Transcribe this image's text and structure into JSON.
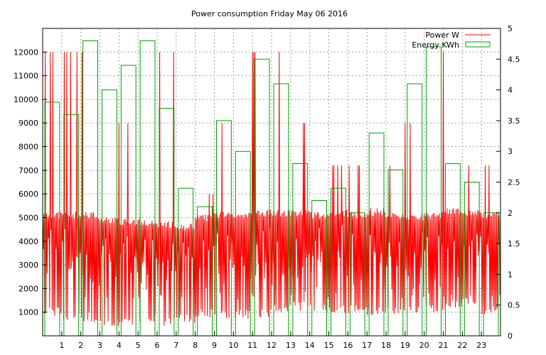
{
  "chart_data": {
    "type": "line",
    "title": "Power consumption Friday May 06 2016",
    "x": [
      0,
      1,
      2,
      3,
      4,
      5,
      6,
      7,
      8,
      9,
      10,
      11,
      12,
      13,
      14,
      15,
      16,
      17,
      18,
      19,
      20,
      21,
      22,
      23
    ],
    "x_tick_labels": [
      "1",
      "2",
      "3",
      "4",
      "5",
      "6",
      "7",
      "8",
      "9",
      "10",
      "11",
      "12",
      "13",
      "14",
      "15",
      "16",
      "17",
      "18",
      "19",
      "20",
      "21",
      "22",
      "23"
    ],
    "xlim": [
      0,
      24
    ],
    "ylim": [
      0,
      13000
    ],
    "y_ticks": [
      1000,
      2000,
      3000,
      4000,
      5000,
      6000,
      7000,
      8000,
      9000,
      10000,
      11000,
      12000
    ],
    "y2lim": [
      0,
      5
    ],
    "y2_ticks": [
      "0",
      "0.5",
      "1",
      "1.5",
      "2",
      "2.5",
      "3",
      "3.5",
      "4",
      "4.5",
      "5"
    ],
    "grid": true,
    "legend_position": "top-right",
    "series": [
      {
        "name": "Power W",
        "color": "#ff0000",
        "style": "line",
        "axis": "left",
        "hourly_low": [
          850,
          600,
          580,
          420,
          430,
          500,
          380,
          520,
          750,
          700,
          720,
          760,
          1000,
          1050,
          1000,
          950,
          900,
          850,
          850,
          950,
          1000,
          1100,
          1300,
          900
        ],
        "hourly_typical": [
          5100,
          5100,
          5100,
          4900,
          4800,
          4800,
          4700,
          4600,
          5000,
          5100,
          5100,
          5200,
          5200,
          5200,
          5100,
          5200,
          5100,
          5200,
          5100,
          5000,
          5100,
          5300,
          5200,
          5100
        ],
        "hourly_peak": [
          12000,
          12000,
          12000,
          12000,
          9000,
          12000,
          12000,
          12000,
          6000,
          9000,
          7200,
          12000,
          12000,
          9000,
          9000,
          7200,
          7200,
          5400,
          7200,
          9000,
          9000,
          12000,
          7200,
          7200
        ]
      },
      {
        "name": "Energy KWh",
        "color": "#00a000",
        "style": "steps",
        "axis": "right",
        "values": [
          3.8,
          3.6,
          4.8,
          4.0,
          4.4,
          4.8,
          3.7,
          2.4,
          2.1,
          3.5,
          3.0,
          4.5,
          4.1,
          2.8,
          2.2,
          2.4,
          2.0,
          3.3,
          2.7,
          4.1,
          4.7,
          2.8,
          2.5,
          2.0
        ]
      }
    ]
  }
}
